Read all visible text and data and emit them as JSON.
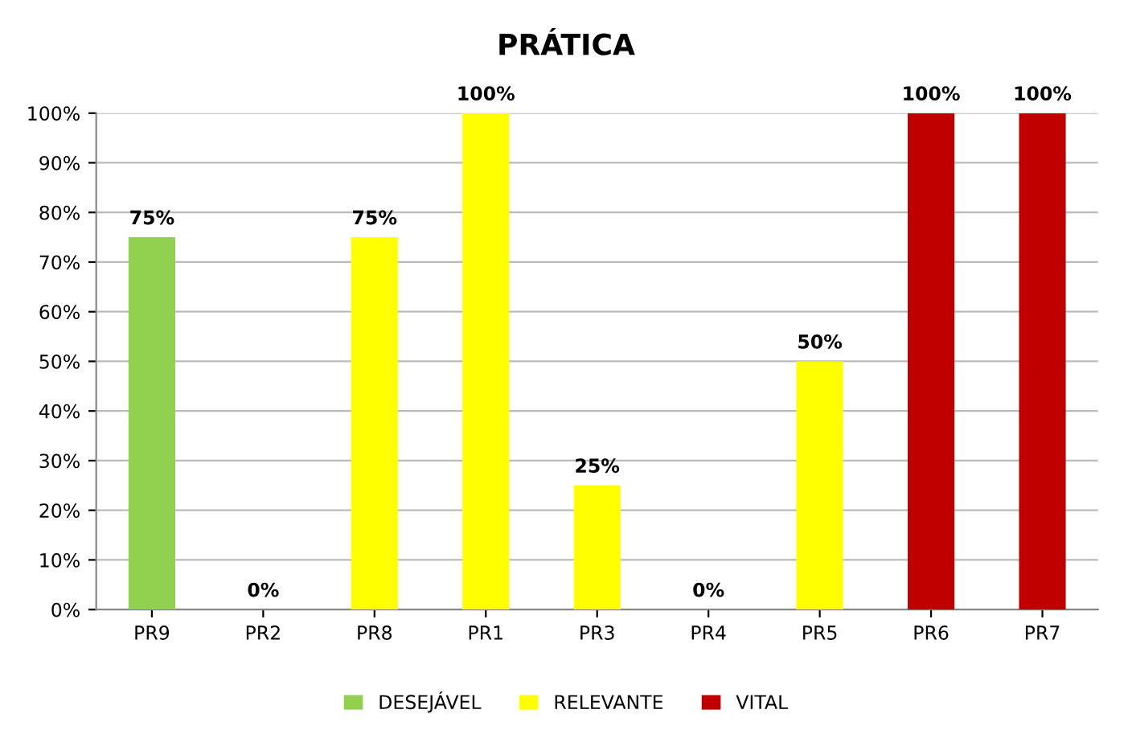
{
  "chart_data": {
    "type": "bar",
    "title": "PRÁTICA",
    "categories": [
      "PR9",
      "PR2",
      "PR8",
      "PR1",
      "PR3",
      "PR4",
      "PR5",
      "PR6",
      "PR7"
    ],
    "series": [
      {
        "name": "DESEJÁVEL",
        "color": "#92d050",
        "values": [
          75,
          null,
          null,
          null,
          null,
          null,
          null,
          null,
          null
        ],
        "value_labels": [
          "75%",
          null,
          null,
          null,
          null,
          null,
          null,
          null,
          null
        ]
      },
      {
        "name": "RELEVANTE",
        "color": "#ffff00",
        "values": [
          null,
          0,
          75,
          100,
          25,
          0,
          50,
          null,
          null
        ],
        "value_labels": [
          null,
          "0%",
          "75%",
          "100%",
          "25%",
          "0%",
          "50%",
          null,
          null
        ]
      },
      {
        "name": "VITAL",
        "color": "#c00000",
        "values": [
          null,
          null,
          null,
          null,
          null,
          null,
          null,
          100,
          100
        ],
        "value_labels": [
          null,
          null,
          null,
          null,
          null,
          null,
          null,
          "100%",
          "100%"
        ]
      }
    ],
    "ylim": [
      0,
      100
    ],
    "yticks": [
      {
        "value": 0,
        "label": "0%"
      },
      {
        "value": 10,
        "label": "10%"
      },
      {
        "value": 20,
        "label": "20%"
      },
      {
        "value": 30,
        "label": "30%"
      },
      {
        "value": 40,
        "label": "40%"
      },
      {
        "value": 50,
        "label": "50%"
      },
      {
        "value": 60,
        "label": "60%"
      },
      {
        "value": 70,
        "label": "70%"
      },
      {
        "value": 80,
        "label": "80%"
      },
      {
        "value": 90,
        "label": "90%"
      },
      {
        "value": 100,
        "label": "100%"
      }
    ],
    "grid": "y",
    "legend": "bottom"
  }
}
